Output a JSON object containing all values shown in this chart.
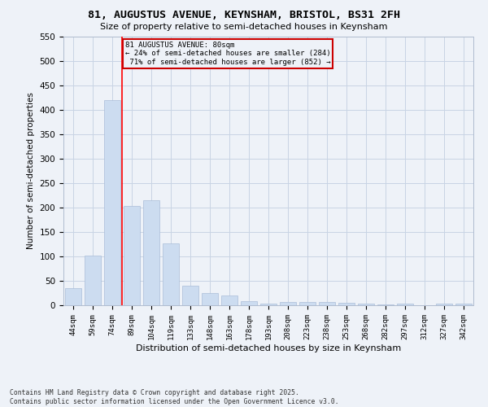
{
  "title": "81, AUGUSTUS AVENUE, KEYNSHAM, BRISTOL, BS31 2FH",
  "subtitle": "Size of property relative to semi-detached houses in Keynsham",
  "xlabel": "Distribution of semi-detached houses by size in Keynsham",
  "ylabel": "Number of semi-detached properties",
  "categories": [
    "44sqm",
    "59sqm",
    "74sqm",
    "89sqm",
    "104sqm",
    "119sqm",
    "133sqm",
    "148sqm",
    "163sqm",
    "178sqm",
    "193sqm",
    "208sqm",
    "223sqm",
    "238sqm",
    "253sqm",
    "268sqm",
    "282sqm",
    "297sqm",
    "312sqm",
    "327sqm",
    "342sqm"
  ],
  "values": [
    35,
    101,
    420,
    204,
    215,
    127,
    40,
    25,
    20,
    9,
    3,
    6,
    7,
    7,
    5,
    3,
    1,
    3,
    0,
    4,
    4
  ],
  "bar_color": "#ccdcf0",
  "bar_edge_color": "#aabdd8",
  "pct_smaller": 24,
  "count_smaller": 284,
  "pct_larger": 71,
  "count_larger": 852,
  "vline_x_index": 2.5,
  "annotation_box_color": "#cc0000",
  "grid_color": "#c8d4e4",
  "bg_color": "#eef2f8",
  "footer": "Contains HM Land Registry data © Crown copyright and database right 2025.\nContains public sector information licensed under the Open Government Licence v3.0.",
  "ylim": [
    0,
    550
  ],
  "yticks": [
    0,
    50,
    100,
    150,
    200,
    250,
    300,
    350,
    400,
    450,
    500,
    550
  ]
}
